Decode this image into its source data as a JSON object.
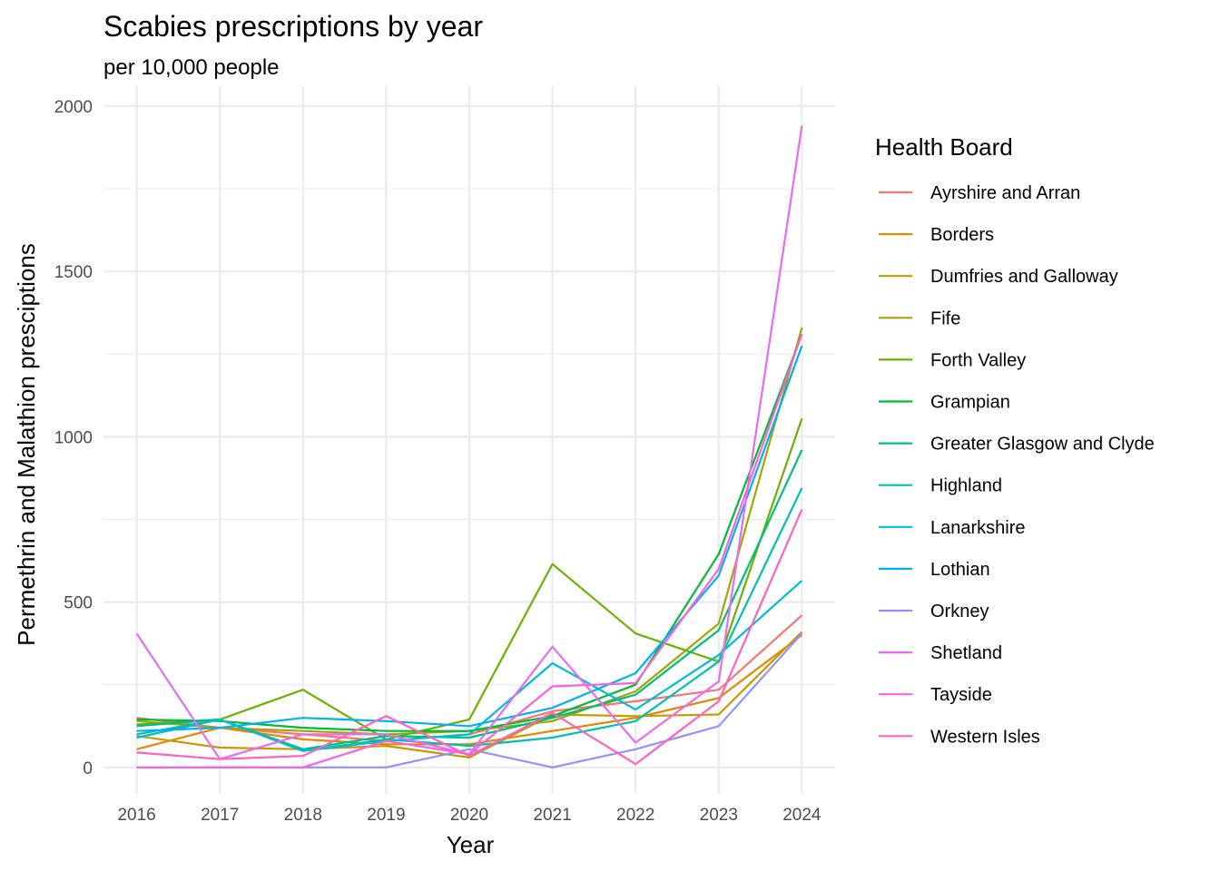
{
  "chart_data": {
    "type": "line",
    "title": "Scabies prescriptions by year",
    "subtitle": "per 10,000 people",
    "xlabel": "Year",
    "ylabel": "Permethrin and Malathion presciptions",
    "x": [
      2016,
      2017,
      2018,
      2019,
      2020,
      2021,
      2022,
      2023,
      2024
    ],
    "ylim": [
      -80,
      2060
    ],
    "yticks": [
      0,
      500,
      1000,
      1500,
      2000
    ],
    "grid": true,
    "legend": {
      "title": "Health Board",
      "position": "right"
    },
    "series": [
      {
        "name": "Ayrshire and Arran",
        "color": "#F8766D",
        "values": [
          150,
          120,
          100,
          80,
          100,
          170,
          200,
          235,
          460
        ]
      },
      {
        "name": "Borders",
        "color": "#E58700",
        "values": [
          55,
          120,
          85,
          70,
          70,
          110,
          150,
          210,
          400
        ]
      },
      {
        "name": "Dumfries and Galloway",
        "color": "#C99800",
        "values": [
          95,
          60,
          55,
          65,
          30,
          160,
          155,
          160,
          410
        ]
      },
      {
        "name": "Fife",
        "color": "#A3A500",
        "values": [
          140,
          120,
          110,
          100,
          110,
          140,
          230,
          435,
          1330
        ]
      },
      {
        "name": "Forth Valley",
        "color": "#6BB100",
        "values": [
          130,
          145,
          235,
          85,
          145,
          615,
          405,
          320,
          1055
        ]
      },
      {
        "name": "Grampian",
        "color": "#00BA38",
        "values": [
          145,
          140,
          120,
          110,
          110,
          155,
          250,
          645,
          1310
        ]
      },
      {
        "name": "Greater Glasgow and Clyde",
        "color": "#00BF7D",
        "values": [
          125,
          145,
          55,
          95,
          90,
          150,
          220,
          415,
          960
        ]
      },
      {
        "name": "Highland",
        "color": "#00C0AF",
        "values": [
          100,
          145,
          50,
          85,
          65,
          90,
          140,
          320,
          845
        ]
      },
      {
        "name": "Lanarkshire",
        "color": "#00BCD8",
        "values": [
          90,
          145,
          50,
          80,
          100,
          315,
          175,
          340,
          565
        ]
      },
      {
        "name": "Lothian",
        "color": "#00B0F6",
        "values": [
          110,
          120,
          150,
          140,
          125,
          180,
          285,
          580,
          1275
        ]
      },
      {
        "name": "Orkney",
        "color": "#9590FF",
        "values": [
          0,
          0,
          0,
          0,
          55,
          0,
          55,
          125,
          405
        ]
      },
      {
        "name": "Shetland",
        "color": "#E76BF3",
        "values": [
          405,
          25,
          100,
          100,
          40,
          365,
          75,
          260,
          1940
        ]
      },
      {
        "name": "Tayside",
        "color": "#FA62DB",
        "values": [
          0,
          0,
          0,
          80,
          40,
          245,
          255,
          600,
          1310
        ]
      },
      {
        "name": "Western Isles",
        "color": "#FF62BC",
        "values": [
          45,
          25,
          35,
          155,
          35,
          165,
          10,
          200,
          780
        ]
      }
    ]
  }
}
